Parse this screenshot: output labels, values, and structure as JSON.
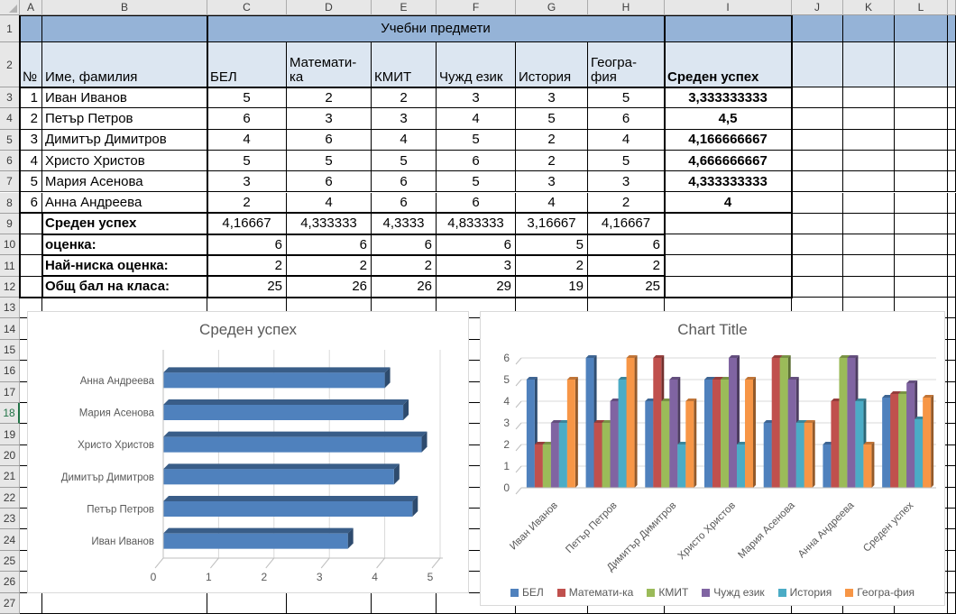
{
  "colors": {
    "header_band": "#95B3D7",
    "subheader_band": "#DCE6F1",
    "selected_row_green": "#217346",
    "grid_border": "#000000",
    "chart_text": "#595959",
    "chart_gridline": "#D9D9D9"
  },
  "spreadsheet": {
    "column_headers": [
      "A",
      "B",
      "C",
      "D",
      "E",
      "F",
      "G",
      "H",
      "I",
      "J",
      "K",
      "L"
    ],
    "row_headers": [
      "1",
      "2",
      "3",
      "4",
      "5",
      "6",
      "7",
      "8",
      "9",
      "10",
      "11",
      "12",
      "13",
      "14",
      "15",
      "16",
      "17",
      "18",
      "19",
      "20",
      "21",
      "22",
      "23",
      "24",
      "25",
      "26",
      "27"
    ],
    "selected_row": "18",
    "table": {
      "title": "Учебни предмети",
      "col_a_header": "№",
      "name_header": "Име, фамилия",
      "subject_headers": [
        "БЕЛ",
        "Математи-\nка",
        "КМИТ",
        "Чужд език",
        "История",
        "Геогра-\nфия"
      ],
      "avg_header": "Среден успех",
      "students": [
        {
          "num": "1",
          "name": "Иван Иванов",
          "grades": [
            "5",
            "2",
            "2",
            "3",
            "3",
            "5"
          ],
          "avg": "3,333333333"
        },
        {
          "num": "2",
          "name": "Петър Петров",
          "grades": [
            "6",
            "3",
            "3",
            "4",
            "5",
            "6"
          ],
          "avg": "4,5"
        },
        {
          "num": "3",
          "name": "Димитър Димитров",
          "grades": [
            "4",
            "6",
            "4",
            "5",
            "2",
            "4"
          ],
          "avg": "4,166666667"
        },
        {
          "num": "4",
          "name": "Христо Христов",
          "grades": [
            "5",
            "5",
            "5",
            "6",
            "2",
            "5"
          ],
          "avg": "4,666666667"
        },
        {
          "num": "5",
          "name": "Мария Асенова",
          "grades": [
            "3",
            "6",
            "6",
            "5",
            "3",
            "3"
          ],
          "avg": "4,333333333"
        },
        {
          "num": "6",
          "name": "Анна Андреева",
          "grades": [
            "2",
            "4",
            "6",
            "6",
            "4",
            "2"
          ],
          "avg": "4"
        }
      ],
      "summary": [
        {
          "label": "Среден успех",
          "values": [
            "4,16667",
            "4,333333",
            "4,3333",
            "4,833333",
            "3,16667",
            "4,16667"
          ]
        },
        {
          "label": "оценка:",
          "values": [
            "6",
            "6",
            "6",
            "6",
            "5",
            "6"
          ]
        },
        {
          "label": "Най-ниска оценка:",
          "values": [
            "2",
            "2",
            "2",
            "3",
            "2",
            "2"
          ]
        },
        {
          "label": "Общ бал на класа:",
          "values": [
            "25",
            "26",
            "26",
            "29",
            "19",
            "25"
          ]
        }
      ]
    }
  },
  "chart_data": [
    {
      "type": "bar",
      "orientation": "horizontal",
      "style": "3d",
      "title": "Среден успех",
      "categories_top_to_bottom": [
        "Анна Андреева",
        "Мария Асенова",
        "Христо Христов",
        "Димитър Димитров",
        "Петър Петров",
        "Иван Иванов"
      ],
      "values": [
        4,
        4.333333333,
        4.666666667,
        4.166666667,
        4.5,
        3.333333333
      ],
      "xlim": [
        0,
        5
      ],
      "xticks": [
        0,
        1,
        2,
        3,
        4,
        5
      ],
      "bar_color": "#4F81BD",
      "grid": true,
      "legend": "none"
    },
    {
      "type": "bar",
      "orientation": "vertical",
      "style": "3d",
      "title": "Chart Title",
      "categories": [
        "Иван Иванов",
        "Петър Петров",
        "Димитър Димитров",
        "Христо Христов",
        "Мария Асенова",
        "Анна Андреева",
        "Среден успех"
      ],
      "series": [
        {
          "name": "БЕЛ",
          "color": "#4F81BD",
          "values": [
            5,
            6,
            4,
            5,
            3,
            2,
            4.16667
          ]
        },
        {
          "name": "Математи-ка",
          "color": "#C0504D",
          "values": [
            2,
            3,
            6,
            5,
            6,
            4,
            4.333333
          ]
        },
        {
          "name": "КМИТ",
          "color": "#9BBB59",
          "values": [
            2,
            3,
            4,
            5,
            6,
            6,
            4.3333
          ]
        },
        {
          "name": "Чужд език",
          "color": "#8064A2",
          "values": [
            3,
            4,
            5,
            6,
            5,
            6,
            4.833333
          ]
        },
        {
          "name": "История",
          "color": "#4BACC6",
          "values": [
            3,
            5,
            2,
            2,
            3,
            4,
            3.16667
          ]
        },
        {
          "name": "Геогра-фия",
          "color": "#F79646",
          "values": [
            5,
            6,
            4,
            5,
            3,
            2,
            4.16667
          ]
        }
      ],
      "ylim": [
        0,
        6
      ],
      "yticks": [
        0,
        1,
        2,
        3,
        4,
        5,
        6
      ],
      "grid": true,
      "legend": "bottom"
    }
  ]
}
